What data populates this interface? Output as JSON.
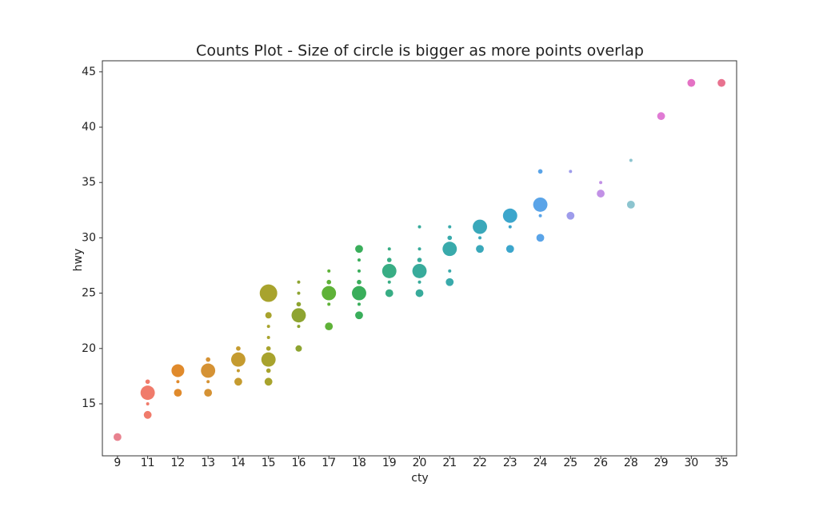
{
  "chart_data": {
    "type": "scatter",
    "title": "Counts Plot - Size of circle is bigger as more points overlap",
    "x_label": "cty",
    "y_label": "hwy",
    "categories": [
      "9",
      "11",
      "12",
      "13",
      "14",
      "15",
      "16",
      "17",
      "18",
      "19",
      "20",
      "21",
      "22",
      "23",
      "24",
      "25",
      "26",
      "28",
      "29",
      "30",
      "35"
    ],
    "colors": [
      "#e8828f",
      "#f07b6b",
      "#e08a2c",
      "#d59234",
      "#c59b2f",
      "#a8a32d",
      "#8ea431",
      "#5fb238",
      "#3aae5b",
      "#38ad84",
      "#38ab9b",
      "#39aaab",
      "#3aa8ba",
      "#3ca6cc",
      "#5aa4e8",
      "#9e9ceb",
      "#c291e6",
      "#8cc4cf",
      "#e07bd4",
      "#e472c4",
      "#e8728f"
    ],
    "x": [
      "9",
      "11",
      "11",
      "11",
      "11",
      "12",
      "12",
      "12",
      "13",
      "13",
      "13",
      "13",
      "14",
      "14",
      "14",
      "14",
      "15",
      "15",
      "15",
      "15",
      "15",
      "15",
      "15",
      "15",
      "16",
      "16",
      "16",
      "16",
      "16",
      "16",
      "17",
      "17",
      "17",
      "17",
      "17",
      "18",
      "18",
      "18",
      "18",
      "18",
      "18",
      "18",
      "19",
      "19",
      "19",
      "19",
      "19",
      "20",
      "20",
      "20",
      "20",
      "20",
      "20",
      "21",
      "21",
      "21",
      "21",
      "21",
      "22",
      "22",
      "22",
      "23",
      "23",
      "23",
      "24",
      "24",
      "24",
      "24",
      "25",
      "25",
      "26",
      "26",
      "28",
      "28",
      "29",
      "30",
      "35"
    ],
    "y": [
      12,
      17,
      16,
      15,
      14,
      18,
      17,
      16,
      19,
      18,
      17,
      16,
      20,
      19,
      18,
      17,
      25,
      23,
      22,
      21,
      20,
      19,
      18,
      17,
      26,
      25,
      24,
      23,
      22,
      20,
      27,
      26,
      25,
      24,
      22,
      29,
      28,
      27,
      26,
      25,
      24,
      23,
      29,
      28,
      27,
      26,
      25,
      31,
      29,
      28,
      27,
      26,
      25,
      31,
      30,
      29,
      27,
      26,
      31,
      30,
      29,
      32,
      31,
      29,
      36,
      33,
      32,
      30,
      36,
      32,
      35,
      34,
      37,
      33,
      41,
      44,
      44
    ],
    "sizes": [
      6,
      2,
      20,
      1,
      6,
      16,
      1,
      6,
      2,
      20,
      1,
      6,
      2,
      20,
      1,
      6,
      30,
      4,
      1,
      1,
      2,
      20,
      2,
      6,
      1,
      1,
      2,
      20,
      1,
      4,
      1,
      2,
      20,
      1,
      6,
      6,
      1,
      1,
      2,
      20,
      1,
      6,
      1,
      2,
      20,
      1,
      6,
      1,
      1,
      2,
      20,
      1,
      6,
      1,
      2,
      20,
      1,
      6,
      20,
      1,
      6,
      20,
      1,
      6,
      2,
      20,
      1,
      6,
      1,
      6,
      1,
      6,
      1,
      6,
      6,
      6,
      6
    ],
    "ylim": [
      10.3,
      46
    ],
    "yticks": [
      15,
      20,
      25,
      30,
      35,
      40,
      45
    ]
  }
}
